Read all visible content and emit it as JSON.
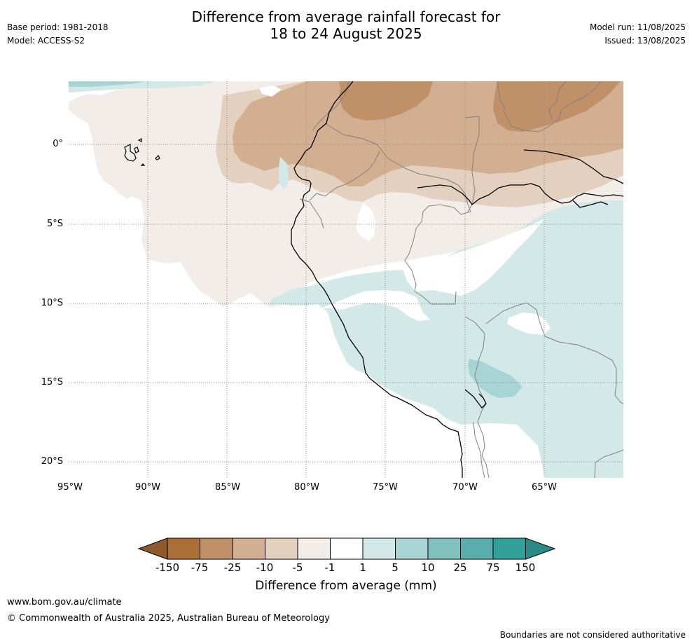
{
  "header": {
    "title_line1": "Difference from average rainfall forecast for",
    "title_line2": "18 to 24 August 2025",
    "base_period": "Base period: 1981-2018",
    "model": "Model: ACCESS-S2",
    "model_run": "Model run: 11/08/2025",
    "issued": "Issued: 13/08/2025"
  },
  "map": {
    "lat_labels": [
      "0°",
      "5°S",
      "10°S",
      "15°S",
      "20°S"
    ],
    "lon_labels": [
      "95°W",
      "90°W",
      "85°W",
      "80°W",
      "75°W",
      "70°W",
      "65°W"
    ],
    "colors": {
      "dry_150": "#8c5a2b",
      "dry_75": "#aa7038",
      "dry_25": "#c09068",
      "dry_10": "#d2af90",
      "dry_5": "#e3d0bf",
      "dry_1": "#f2ede8",
      "neutral": "#ffffff",
      "wet_1": "#d3e9e8",
      "wet_5": "#a8d5d4",
      "wet_10": "#80c0be",
      "wet_25": "#5aaeab",
      "wet_75": "#34a09a",
      "wet_150": "#2c8a86"
    }
  },
  "legend": {
    "labels": [
      "-150",
      "-75",
      "-25",
      "-10",
      "-5",
      "-1",
      "1",
      "5",
      "10",
      "25",
      "75",
      "150"
    ],
    "title": "Difference from average (mm)"
  },
  "footer": {
    "url": "www.bom.gov.au/climate",
    "copyright": "© Commonwealth of Australia 2025, Australian Bureau of Meteorology",
    "disclaimer": "Boundaries are not considered authoritative"
  }
}
